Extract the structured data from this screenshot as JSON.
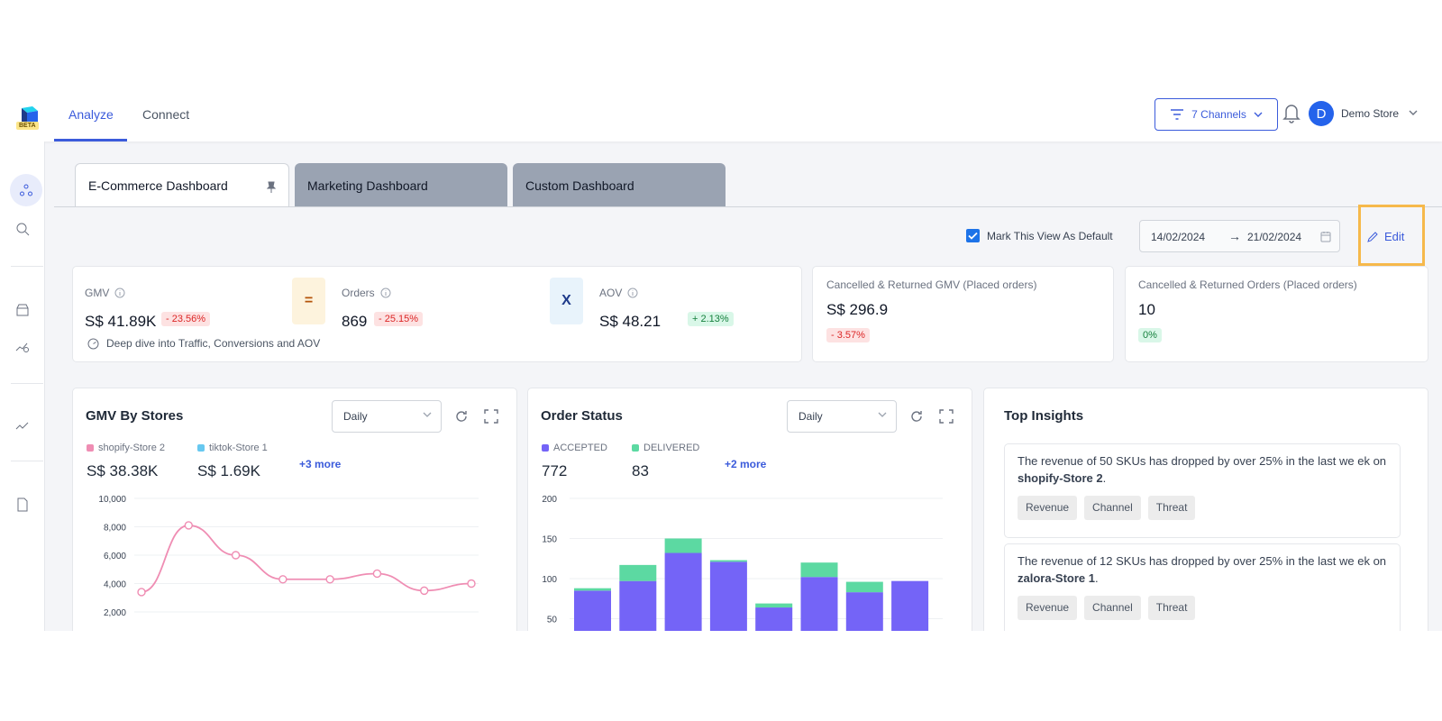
{
  "nav": {
    "beta": "BETA",
    "tabs": [
      {
        "label": "Analyze"
      },
      {
        "label": "Connect"
      }
    ]
  },
  "header": {
    "channels_label": "7 Channels",
    "avatar_initial": "D",
    "store_name": "Demo Store"
  },
  "dashboard_tabs": [
    {
      "label": "E-Commerce Dashboard"
    },
    {
      "label": "Marketing Dashboard"
    },
    {
      "label": "Custom Dashboard"
    }
  ],
  "controls": {
    "default_label": "Mark This View As Default",
    "date_from": "14/02/2024",
    "arrow": "→",
    "date_to": "21/02/2024",
    "edit_label": "Edit"
  },
  "kpis": {
    "gmv": {
      "label": "GMV",
      "value": "S$ 41.89K",
      "change": "- 23.56%"
    },
    "equals": "=",
    "orders": {
      "label": "Orders",
      "value": "869",
      "change": "- 25.15%"
    },
    "times": "X",
    "aov": {
      "label": "AOV",
      "value": "S$ 48.21",
      "change": "+ 2.13%"
    },
    "deep_dive": "Deep dive into Traffic, Conversions and AOV"
  },
  "cancelled_gmv": {
    "label": "Cancelled & Returned GMV (Placed orders)",
    "value": "S$ 296.9",
    "change": "- 3.57%"
  },
  "cancelled_orders": {
    "label": "Cancelled & Returned Orders (Placed orders)",
    "value": "10",
    "change": "0%"
  },
  "colors": {
    "accent": "#3b5bdb",
    "pink": "#ec8ba8",
    "purple": "#7464f7",
    "green": "#5cd9a2"
  },
  "chart_data": [
    {
      "type": "line",
      "title": "GMV By Stores",
      "granularity": "Daily",
      "legend": [
        {
          "name": "shopify-Store 2",
          "value": "S$ 38.38K",
          "color": "#ef8db3"
        },
        {
          "name": "tiktok-Store 1",
          "value": "S$ 1.69K",
          "color": "#67c8f0"
        }
      ],
      "more": "+3 more",
      "y_ticks": [
        "10,000",
        "8,000",
        "6,000",
        "4,000",
        "2,000"
      ],
      "ylim": [
        0,
        10000
      ],
      "series": [
        {
          "name": "shopify-Store 2",
          "values": [
            3400,
            8100,
            6000,
            4300,
            4300,
            4700,
            3500,
            4000
          ]
        }
      ]
    },
    {
      "type": "bar",
      "title": "Order Status",
      "granularity": "Daily",
      "legend": [
        {
          "name": "ACCEPTED",
          "value": "772",
          "color": "#7464f7"
        },
        {
          "name": "DELIVERED",
          "value": "83",
          "color": "#5cd9a2"
        }
      ],
      "more": "+2 more",
      "y_ticks": [
        "200",
        "150",
        "100",
        "50"
      ],
      "ylim": [
        0,
        200
      ],
      "series": [
        {
          "name": "ACCEPTED",
          "values": [
            85,
            97,
            132,
            121,
            64,
            102,
            83,
            97
          ]
        },
        {
          "name": "DELIVERED",
          "values": [
            3,
            20,
            18,
            2,
            5,
            18,
            13,
            0
          ]
        }
      ]
    }
  ],
  "insights": {
    "title": "Top Insights",
    "items": [
      {
        "text": "The revenue of 50 SKUs has dropped by over 25% in the last we ek on ",
        "store": "shopify-Store 2",
        "tags": [
          "Revenue",
          "Channel",
          "Threat"
        ]
      },
      {
        "text": "The revenue of 12 SKUs has dropped by over 25% in the last we ek on ",
        "store": "zalora-Store 1",
        "tags": [
          "Revenue",
          "Channel",
          "Threat"
        ]
      }
    ]
  }
}
